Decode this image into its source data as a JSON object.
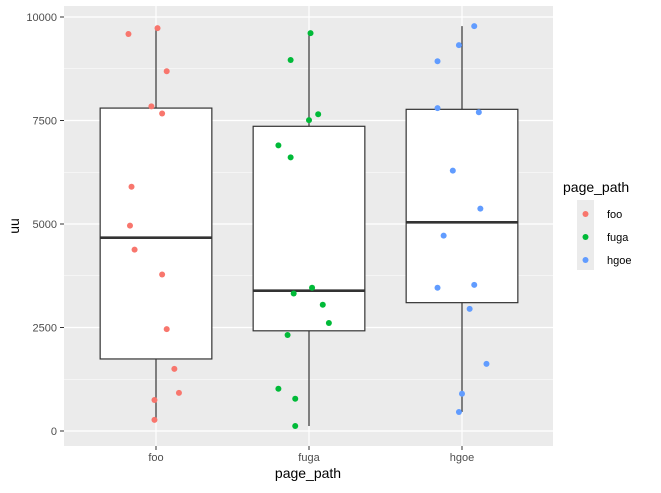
{
  "chart_data": {
    "type": "boxplot",
    "xlabel": "page_path",
    "ylabel": "uu",
    "ylim": [
      -400,
      10300
    ],
    "yticks": [
      0,
      2500,
      5000,
      7500,
      10000
    ],
    "yticklabels": [
      "0",
      "2500",
      "5000",
      "7500",
      "10000"
    ],
    "categories": [
      "foo",
      "fuga",
      "hgoe"
    ],
    "grid": true,
    "legend": {
      "title": "page_path",
      "position": "right",
      "entries": [
        "foo",
        "fuga",
        "hgoe"
      ]
    },
    "colors": {
      "foo": "#F8766D",
      "fuga": "#00BA38",
      "hgoe": "#619CFF",
      "panel": "#EBEBEB",
      "grid": "#FFFFFF",
      "box": "#333333"
    },
    "boxes": [
      {
        "category": "foo",
        "lower_whisker": 270,
        "q1": 1740,
        "median": 4670,
        "q3": 7800,
        "upper_whisker": 9730
      },
      {
        "category": "fuga",
        "lower_whisker": 120,
        "q1": 2420,
        "median": 3390,
        "q3": 7360,
        "upper_whisker": 9610
      },
      {
        "category": "hgoe",
        "lower_whisker": 460,
        "q1": 3100,
        "median": 5040,
        "q3": 7770,
        "upper_whisker": 9780
      }
    ],
    "points": [
      {
        "category": "foo",
        "jitter": [
          0.01,
          -0.18,
          0.07,
          -0.03,
          0.04,
          -0.16,
          -0.17,
          -0.14,
          0.04,
          0.07,
          0.12,
          0.15,
          -0.01,
          -0.01
        ],
        "values": [
          9730,
          9590,
          8690,
          7840,
          7670,
          5900,
          4960,
          4380,
          3780,
          2460,
          1500,
          920,
          750,
          270
        ]
      },
      {
        "category": "fuga",
        "jitter": [
          0.01,
          -0.12,
          0.06,
          0.0,
          -0.2,
          -0.12,
          0.02,
          -0.1,
          0.09,
          0.13,
          -0.14,
          -0.2,
          -0.09,
          -0.09
        ],
        "values": [
          9610,
          8960,
          7650,
          7510,
          6900,
          6610,
          3460,
          3320,
          3050,
          2610,
          2320,
          1020,
          780,
          120
        ]
      },
      {
        "category": "hgoe",
        "jitter": [
          0.08,
          -0.02,
          -0.16,
          -0.16,
          0.11,
          -0.06,
          0.12,
          -0.12,
          0.08,
          -0.16,
          0.05,
          0.16,
          0.0,
          -0.02
        ],
        "values": [
          9780,
          9320,
          8930,
          7800,
          7700,
          6290,
          5370,
          4720,
          3530,
          3460,
          2950,
          1620,
          900,
          460
        ]
      }
    ]
  }
}
